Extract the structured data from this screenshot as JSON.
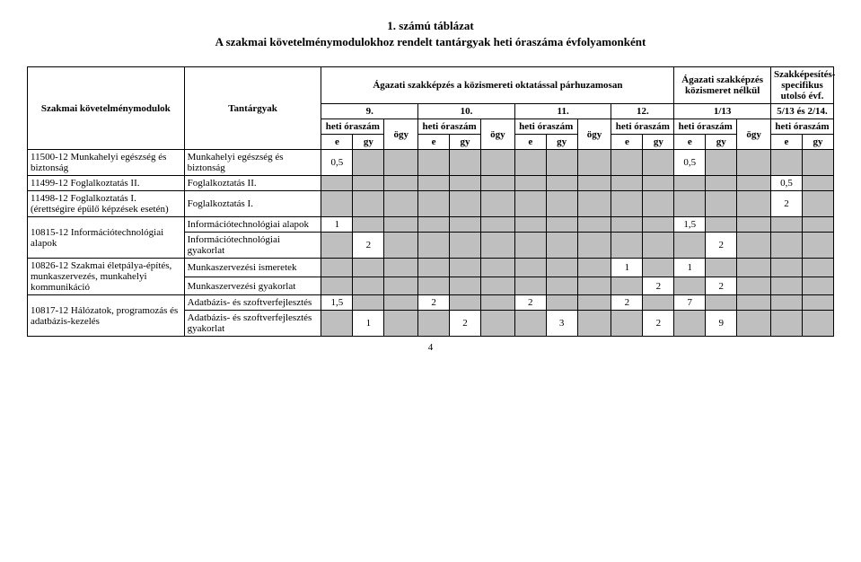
{
  "title_line1": "1. számú táblázat",
  "title_line2": "A szakmai követelménymodulokhoz rendelt tantárgyak heti óraszáma évfolyamonként",
  "header": {
    "col_module": "Szakmai követelménymodulok",
    "col_subject": "Tantárgyak",
    "group_main": "Ágazati szakképzés a közismereti oktatással párhuzamosan",
    "group_nokozi": "Ágazati szakképzés közismeret nélkül",
    "group_spec": "Szakképesítés-specifikus utolsó évf.",
    "grade9": "9.",
    "grade10": "10.",
    "grade11": "11.",
    "grade12": "12.",
    "grade_1_13": "1/13",
    "grade_5_13": "5/13 és 2/14.",
    "heti": "heti óraszám",
    "ogy": "ögy",
    "e": "e",
    "gy": "gy"
  },
  "rows": {
    "r1_mod": "11500-12 Munkahelyi egészség és biztonság",
    "r1_sub": "Munkahelyi egészség és biztonság",
    "r1_v9e": "0,5",
    "r1_v13e": "0,5",
    "r2_mod": "11499-12 Foglalkoztatás II.",
    "r2_sub": "Foglalkoztatás II.",
    "r2_vlast_e": "0,5",
    "r3_mod": "11498-12 Foglalkoztatás I. (érettségire épülő képzések esetén)",
    "r3_sub": "Foglalkoztatás I.",
    "r3_vlast_e": "2",
    "r4_mod": "10815-12 Információtechnológiai alapok",
    "r4a_sub": "Információtechnológiai alapok",
    "r4a_v9e": "1",
    "r4a_v13e": "1,5",
    "r4b_sub": "Információtechnológiai gyakorlat",
    "r4b_v9gy": "2",
    "r4b_v13gy": "2",
    "r5_mod": "10826-12 Szakmai életpálya-építés, munkaszervezés, munkahelyi kommunikáció",
    "r5a_sub": "Munkaszervezési ismeretek",
    "r5a_v12e": "1",
    "r5a_v13e": "1",
    "r5b_sub": "Munkaszervezési gyakorlat",
    "r5b_v12gy": "2",
    "r5b_v13gy": "2",
    "r6_mod": "10817-12 Hálózatok, programozás és adatbázis-kezelés",
    "r6a_sub": "Adatbázis- és szoftverfejlesztés",
    "r6a_v9e": "1,5",
    "r6a_v10e": "2",
    "r6a_v11e": "2",
    "r6a_v12e": "2",
    "r6a_v13e": "7",
    "r6b_sub": "Adatbázis- és szoftverfejlesztés gyakorlat",
    "r6b_v9gy": "1",
    "r6b_v10gy": "2",
    "r6b_v11gy": "3",
    "r6b_v12gy": "2",
    "r6b_v13gy": "9"
  },
  "pagenum": "4",
  "colors": {
    "gray": "#bfbfbf"
  }
}
